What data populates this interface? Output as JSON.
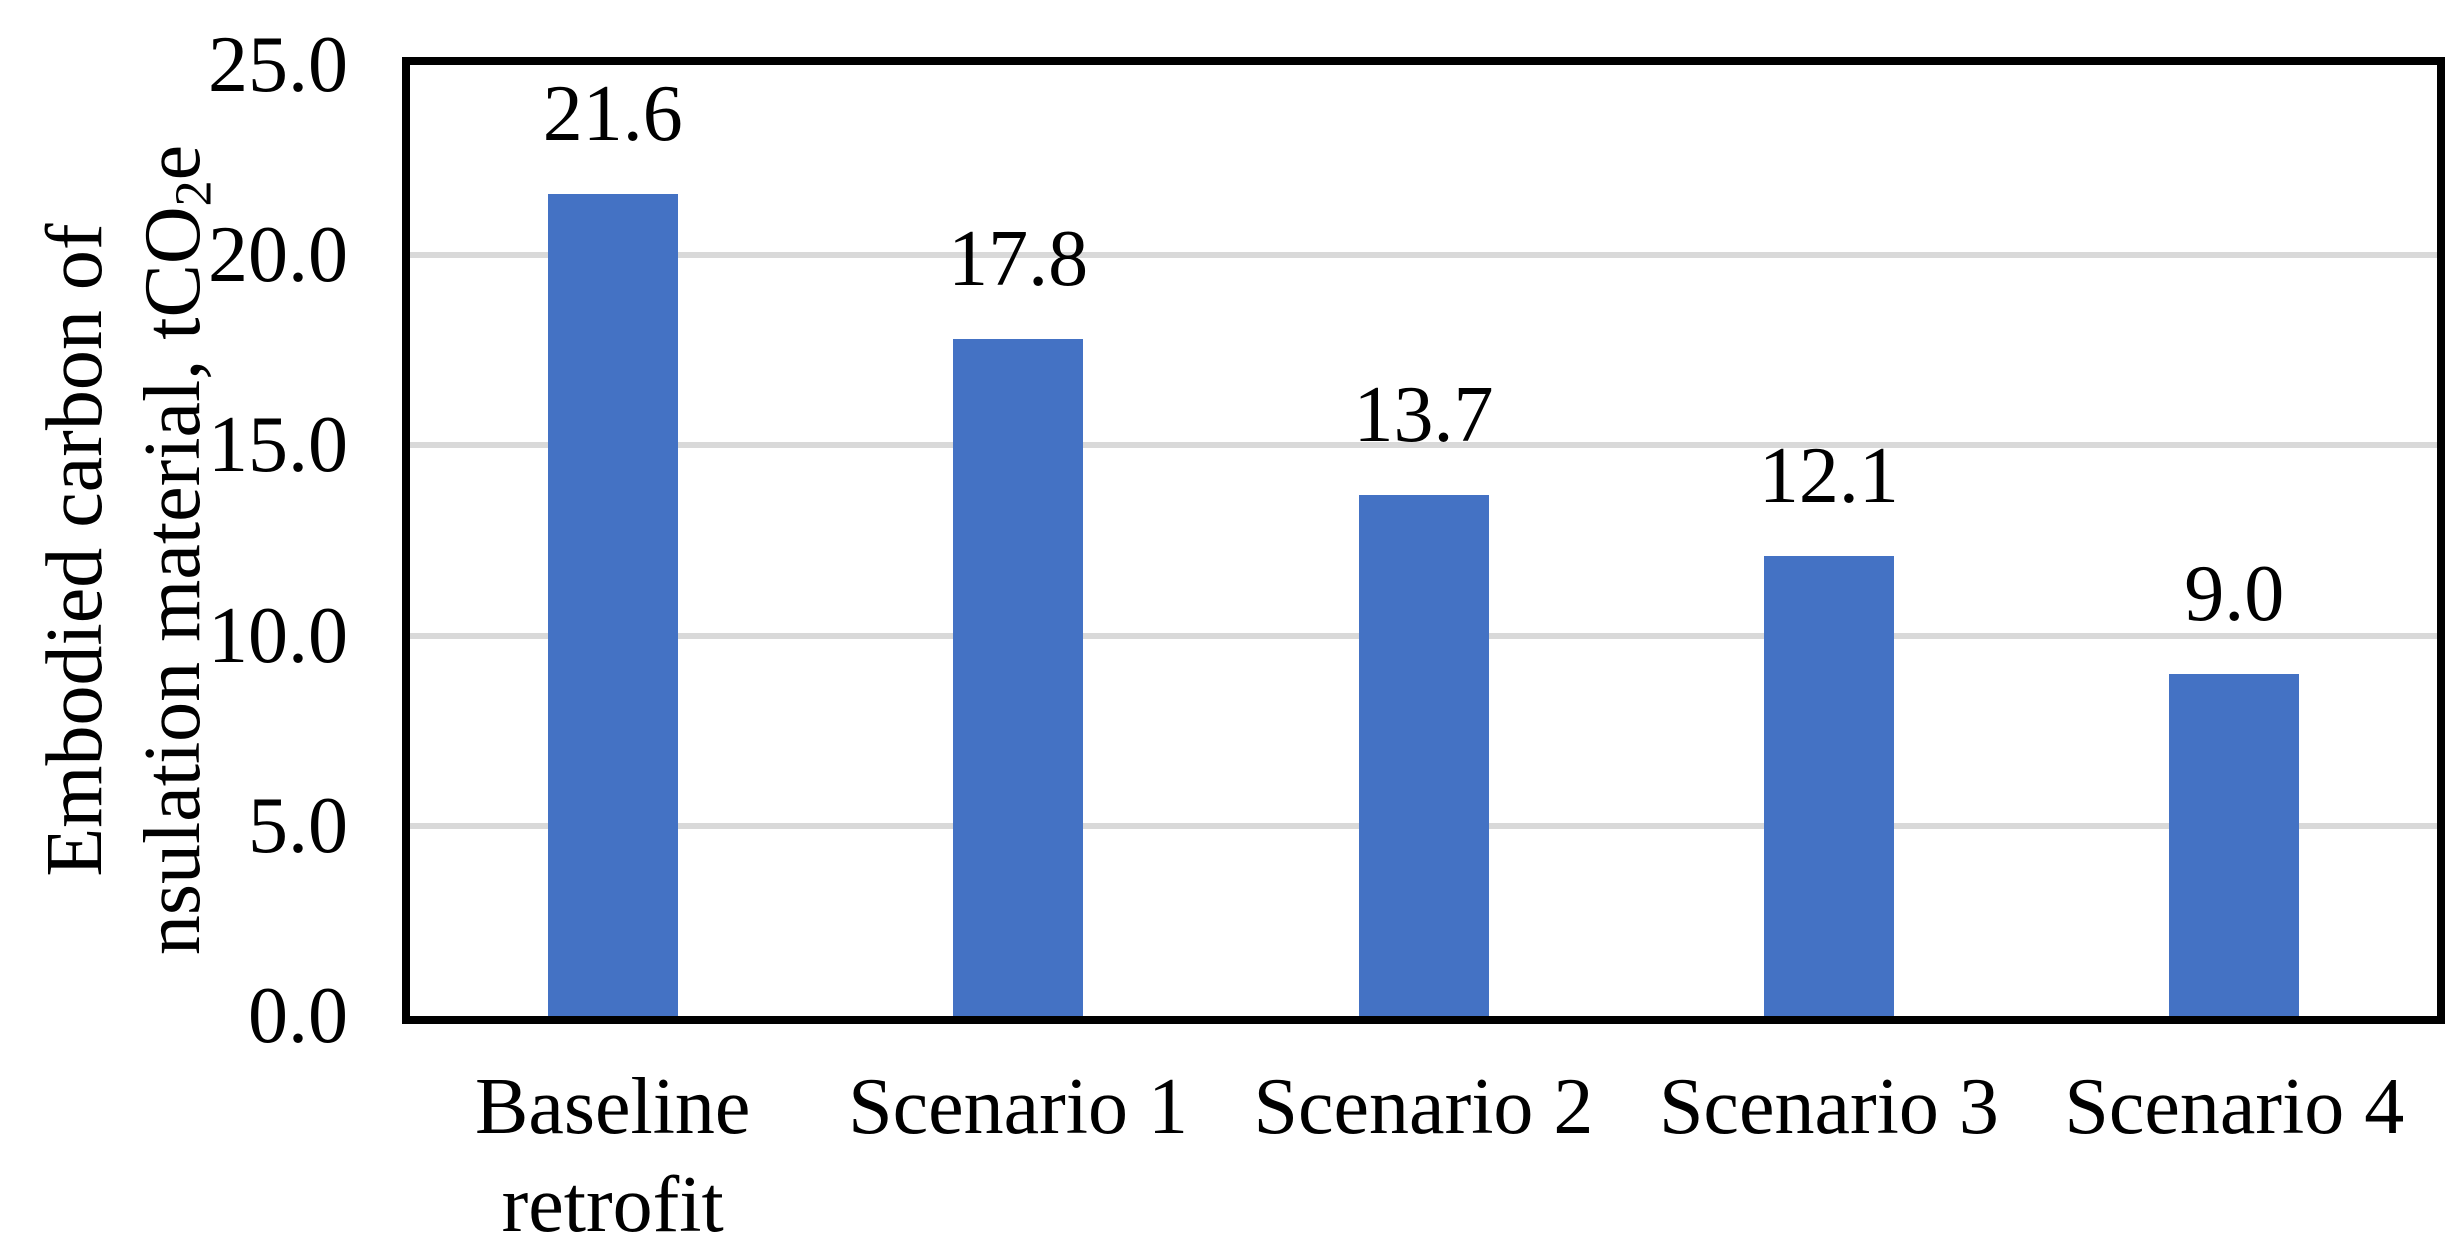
{
  "chart_data": {
    "type": "bar",
    "title": "",
    "categories": [
      "Baseline retrofit",
      "Scenario 1",
      "Scenario 2",
      "Scenario 3",
      "Scenario 4"
    ],
    "values": [
      21.6,
      17.8,
      13.7,
      12.1,
      9.0
    ],
    "value_labels": [
      "21.6",
      "17.8",
      "13.7",
      "12.1",
      "9.0"
    ],
    "series_name": "Embodied carbon of insulation material",
    "xlabel": "",
    "ylabel_line1": "Embodied carbon of",
    "ylabel_line2_pre": "nsulation material, tCO",
    "ylabel_line2_sub": "2",
    "ylabel_line2_post": "e",
    "y_tick_values": [
      0,
      5,
      10,
      15,
      20,
      25
    ],
    "y_tick_labels": [
      "0.0",
      "5.0",
      "10.0",
      "15.0",
      "20.0",
      "25.0"
    ],
    "ylim": [
      0,
      25
    ],
    "grid": true,
    "legend": false,
    "colors": {
      "bar": "#4472C4",
      "gridline": "#D9D9D9",
      "plot_border": "#000000",
      "text": "#000000",
      "background": "#FFFFFF"
    }
  }
}
